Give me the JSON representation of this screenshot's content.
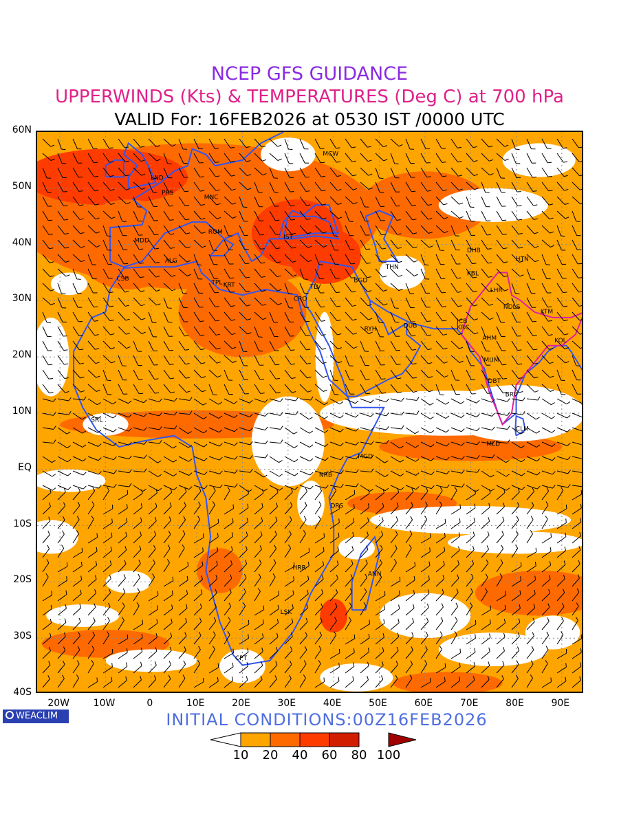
{
  "title": {
    "line1": "NCEP GFS GUIDANCE",
    "line2": "UPPERWINDS (Kts) & TEMPERATURES (Deg C) at 700 hPa",
    "line3": "VALID For: 16FEB2026 at 0530 IST /0000 UTC",
    "line1_color": "#8a2be2",
    "line2_color": "#e0218a"
  },
  "axes": {
    "lat_labels": [
      "60N",
      "50N",
      "40N",
      "30N",
      "20N",
      "10N",
      "EQ",
      "10S",
      "20S",
      "30S",
      "40S"
    ],
    "lon_labels": [
      "20W",
      "10W",
      "0",
      "10E",
      "20E",
      "30E",
      "40E",
      "50E",
      "60E",
      "70E",
      "80E",
      "90E"
    ]
  },
  "logo": {
    "text": "WEACLIM",
    "background": "#2a3fb0"
  },
  "initial_conditions": "INITIAL CONDITIONS:00Z16FEB2026",
  "colorbar": {
    "labels": [
      "10",
      "20",
      "40",
      "60",
      "80",
      "100"
    ],
    "colors": [
      "#ffffff",
      "#ffa500",
      "#ff6a00",
      "#ff3c00",
      "#d21e00",
      "#a00000"
    ]
  },
  "stations": [
    "MCW",
    "LND",
    "PRS",
    "MNC",
    "ROM",
    "IST",
    "MDD",
    "ALG",
    "CSB",
    "TPL",
    "KRT",
    "CRO",
    "TLV",
    "BGD",
    "THN",
    "DHB",
    "HTN",
    "KBL",
    "LHR",
    "JCB",
    "NDLS",
    "KTM",
    "KRC",
    "AHM",
    "DUB",
    "RYH",
    "KOL",
    "MUM",
    "DBT",
    "BRV",
    "CLM",
    "MLD",
    "SRL",
    "MGD",
    "NRB",
    "DRS",
    "ANN",
    "HRR",
    "LSK",
    "CPT"
  ],
  "colors": {
    "boundary": "#3355ee",
    "india_boundary": "#e020a0",
    "temp_label": "#3355ee",
    "wind_barb": "#000000"
  }
}
